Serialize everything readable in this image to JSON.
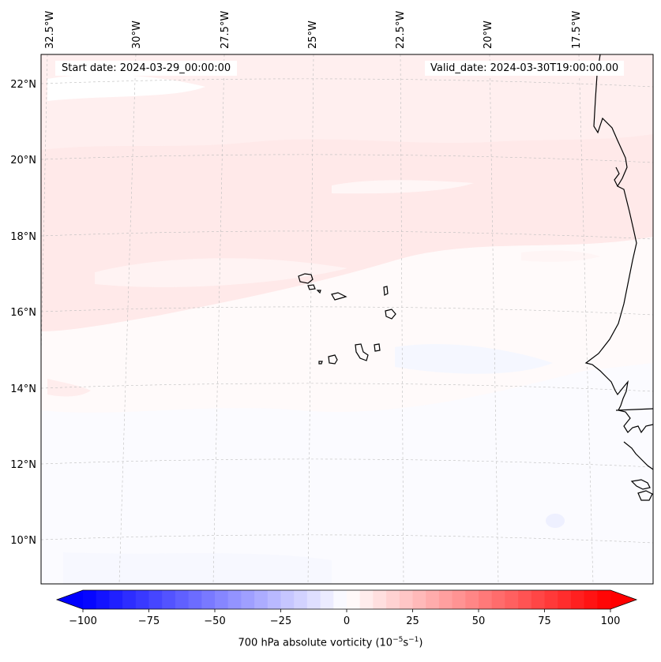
{
  "map": {
    "projection": "lambert-conformal",
    "region": "Cape Verde and West African coast",
    "longitude_labels": [
      "32.5°W",
      "30°W",
      "27.5°W",
      "25°W",
      "22.5°W",
      "20°W",
      "17.5°W"
    ],
    "latitude_labels": [
      "22°N",
      "20°N",
      "18°N",
      "16°N",
      "14°N",
      "12°N",
      "10°N"
    ],
    "gridlines": true,
    "coastline_color": "#000000"
  },
  "header": {
    "start_date": "Start date: 2024-03-29_00:00:00",
    "valid_date": "Valid_date: 2024-03-30T19:00:00.00"
  },
  "colorbar": {
    "label_prefix": "700 hPa absolute vorticity (10",
    "label_exp1": "−5",
    "label_mid": "s",
    "label_exp2": "−1",
    "label_suffix": ")",
    "ticks": [
      "−100",
      "−75",
      "−50",
      "−25",
      "0",
      "25",
      "50",
      "75",
      "100"
    ],
    "vmin": -100,
    "vmax": 100,
    "levels": 40,
    "colormap": "bwr",
    "extend": "both",
    "colors": {
      "min": "#0000ff",
      "mid": "#ffffff",
      "max": "#ff0000"
    }
  }
}
